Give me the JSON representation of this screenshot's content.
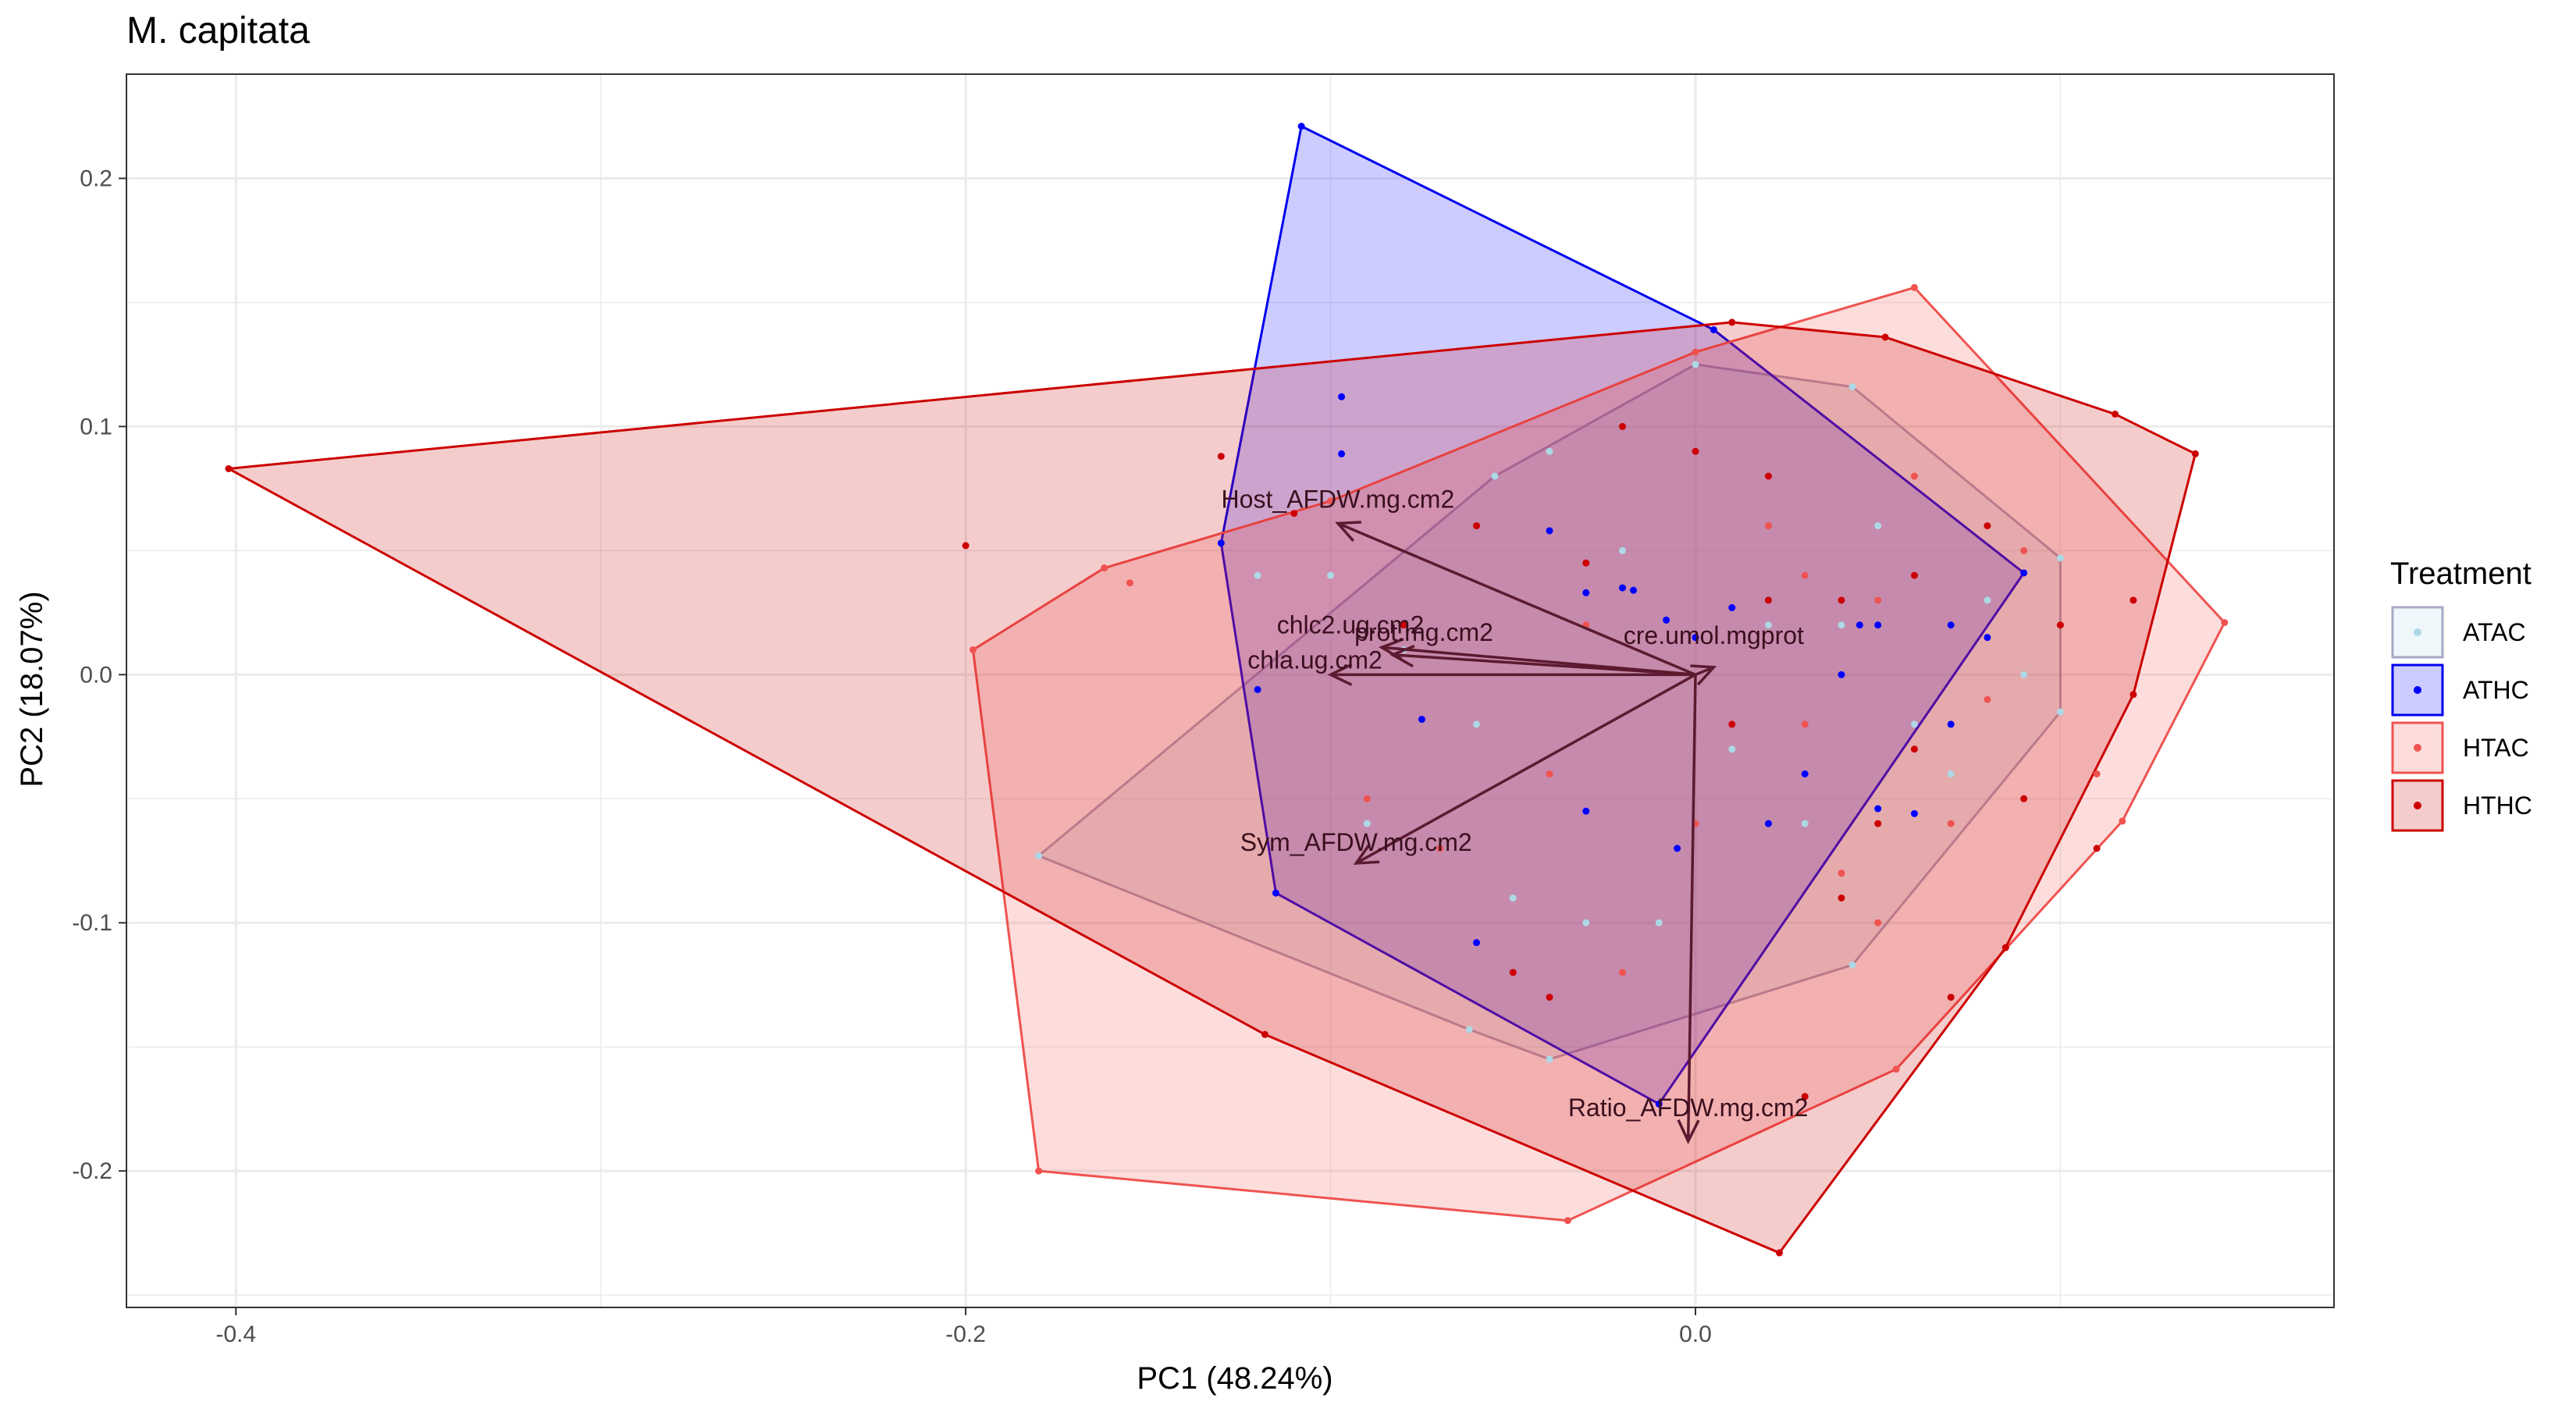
{
  "chart_data": {
    "type": "scatter",
    "title": "M. capitata",
    "xlabel": "PC1 (48.24%)",
    "ylabel": "PC2 (18.07%)",
    "xlim": [
      -0.43,
      0.175
    ],
    "ylim": [
      -0.255,
      0.242
    ],
    "x_ticks": [
      -0.4,
      -0.2,
      0.0
    ],
    "x_tick_labels": [
      "-0.4",
      "-0.2",
      "0.0"
    ],
    "y_ticks": [
      -0.2,
      -0.1,
      0.0,
      0.1,
      0.2
    ],
    "y_tick_labels": [
      "-0.2",
      "-0.1",
      "0.0",
      "0.1",
      "0.2"
    ],
    "grid": true,
    "legend": {
      "title": "Treatment",
      "position": "right",
      "entries": [
        "ATAC",
        "ATHC",
        "HTAC",
        "HTHC"
      ]
    },
    "series": [
      {
        "name": "ATAC",
        "color": "#add8e6",
        "hull_color": "#a9a9c6",
        "hull": [
          [
            -0.18,
            -0.073
          ],
          [
            -0.062,
            -0.143
          ],
          [
            -0.04,
            -0.155
          ],
          [
            0.043,
            -0.117
          ],
          [
            0.1,
            -0.015
          ],
          [
            0.1,
            0.047
          ],
          [
            0.043,
            0.116
          ],
          [
            0.0,
            0.125
          ],
          [
            -0.055,
            0.08
          ],
          [
            -0.18,
            -0.073
          ]
        ],
        "points": [
          [
            -0.18,
            -0.073
          ],
          [
            -0.062,
            -0.143
          ],
          [
            -0.04,
            -0.155
          ],
          [
            0.043,
            -0.117
          ],
          [
            0.1,
            -0.015
          ],
          [
            0.1,
            0.047
          ],
          [
            0.043,
            0.116
          ],
          [
            0.0,
            0.125
          ],
          [
            -0.055,
            0.08
          ],
          [
            -0.1,
            0.04
          ],
          [
            -0.08,
            0.01
          ],
          [
            -0.02,
            0.05
          ],
          [
            0.02,
            0.02
          ],
          [
            0.06,
            -0.02
          ],
          [
            0.03,
            -0.06
          ],
          [
            -0.03,
            -0.1
          ],
          [
            -0.06,
            -0.02
          ],
          [
            0.08,
            0.03
          ],
          [
            -0.01,
            -0.1
          ],
          [
            0.05,
            0.06
          ],
          [
            -0.09,
            -0.06
          ],
          [
            0.07,
            -0.04
          ],
          [
            -0.04,
            0.09
          ],
          [
            0.01,
            -0.03
          ],
          [
            0.09,
            0.0
          ],
          [
            -0.12,
            0.04
          ],
          [
            -0.05,
            -0.09
          ],
          [
            0.04,
            0.02
          ]
        ]
      },
      {
        "name": "ATHC",
        "color": "#0000ff",
        "hull_color": "#0000ee",
        "hull": [
          [
            -0.108,
            0.221
          ],
          [
            0.005,
            0.139
          ],
          [
            0.09,
            0.041
          ],
          [
            -0.01,
            -0.173
          ],
          [
            -0.115,
            -0.088
          ],
          [
            -0.13,
            0.053
          ],
          [
            -0.108,
            0.221
          ]
        ],
        "points": [
          [
            -0.108,
            0.221
          ],
          [
            0.005,
            0.139
          ],
          [
            0.09,
            0.041
          ],
          [
            -0.01,
            -0.173
          ],
          [
            -0.115,
            -0.088
          ],
          [
            -0.13,
            0.053
          ],
          [
            -0.097,
            0.112
          ],
          [
            -0.097,
            0.089
          ],
          [
            -0.12,
            -0.006
          ],
          [
            -0.06,
            -0.108
          ],
          [
            -0.03,
            0.033
          ],
          [
            -0.02,
            0.035
          ],
          [
            -0.017,
            0.034
          ],
          [
            0.01,
            0.027
          ],
          [
            -0.03,
            -0.055
          ],
          [
            0.05,
            0.02
          ],
          [
            0.07,
            0.02
          ],
          [
            0.08,
            0.015
          ],
          [
            0.06,
            -0.056
          ],
          [
            0.05,
            -0.054
          ],
          [
            -0.005,
            -0.07
          ],
          [
            0.02,
            -0.06
          ],
          [
            0.0,
            0.015
          ],
          [
            0.045,
            0.02
          ],
          [
            0.04,
            0.0
          ],
          [
            -0.04,
            0.058
          ],
          [
            0.03,
            -0.04
          ],
          [
            0.07,
            -0.02
          ],
          [
            -0.075,
            -0.018
          ],
          [
            -0.008,
            0.022
          ]
        ]
      },
      {
        "name": "HTAC",
        "color": "#ef5350",
        "hull_color": "#ef5350",
        "hull": [
          [
            -0.198,
            0.01
          ],
          [
            -0.162,
            0.043
          ],
          [
            -0.1,
            0.07
          ],
          [
            0.0,
            0.13
          ],
          [
            0.06,
            0.156
          ],
          [
            0.145,
            0.021
          ],
          [
            0.117,
            -0.059
          ],
          [
            0.055,
            -0.159
          ],
          [
            -0.035,
            -0.22
          ],
          [
            -0.18,
            -0.2
          ],
          [
            -0.198,
            0.01
          ]
        ],
        "points": [
          [
            -0.198,
            0.01
          ],
          [
            -0.162,
            0.043
          ],
          [
            -0.1,
            0.07
          ],
          [
            0.0,
            0.13
          ],
          [
            0.06,
            0.156
          ],
          [
            0.145,
            0.021
          ],
          [
            0.117,
            -0.059
          ],
          [
            0.055,
            -0.159
          ],
          [
            -0.035,
            -0.22
          ],
          [
            -0.18,
            -0.2
          ],
          [
            -0.155,
            0.037
          ],
          [
            -0.09,
            -0.05
          ],
          [
            -0.06,
            0.06
          ],
          [
            -0.04,
            -0.04
          ],
          [
            0.02,
            0.06
          ],
          [
            0.03,
            -0.02
          ],
          [
            0.05,
            0.03
          ],
          [
            0.08,
            -0.01
          ],
          [
            0.1,
            0.02
          ],
          [
            0.11,
            -0.04
          ],
          [
            -0.02,
            -0.12
          ],
          [
            0.04,
            -0.08
          ],
          [
            0.06,
            0.08
          ],
          [
            -0.07,
            -0.07
          ],
          [
            0.09,
            0.05
          ],
          [
            0.03,
            0.04
          ],
          [
            0.07,
            -0.06
          ],
          [
            -0.03,
            0.02
          ],
          [
            0.0,
            -0.06
          ],
          [
            0.05,
            -0.1
          ]
        ]
      },
      {
        "name": "HTHC",
        "color": "#cc0000",
        "hull_color": "#cc0000",
        "hull": [
          [
            -0.402,
            0.083
          ],
          [
            0.01,
            0.142
          ],
          [
            0.052,
            0.136
          ],
          [
            0.115,
            0.105
          ],
          [
            0.137,
            0.089
          ],
          [
            0.12,
            -0.008
          ],
          [
            0.085,
            -0.11
          ],
          [
            0.023,
            -0.233
          ],
          [
            -0.118,
            -0.145
          ],
          [
            -0.402,
            0.083
          ]
        ],
        "points": [
          [
            -0.402,
            0.083
          ],
          [
            0.01,
            0.142
          ],
          [
            0.052,
            0.136
          ],
          [
            0.115,
            0.105
          ],
          [
            0.137,
            0.089
          ],
          [
            0.12,
            -0.008
          ],
          [
            0.085,
            -0.11
          ],
          [
            0.023,
            -0.233
          ],
          [
            -0.118,
            -0.145
          ],
          [
            -0.2,
            0.052
          ],
          [
            -0.13,
            0.088
          ],
          [
            -0.11,
            0.065
          ],
          [
            -0.06,
            0.06
          ],
          [
            -0.03,
            0.045
          ],
          [
            0.0,
            0.09
          ],
          [
            0.02,
            0.08
          ],
          [
            0.04,
            0.03
          ],
          [
            0.06,
            0.04
          ],
          [
            0.09,
            -0.05
          ],
          [
            0.1,
            0.02
          ],
          [
            0.12,
            0.03
          ],
          [
            0.05,
            -0.06
          ],
          [
            -0.05,
            -0.12
          ],
          [
            -0.08,
            0.02
          ],
          [
            0.03,
            -0.17
          ],
          [
            0.07,
            -0.13
          ],
          [
            0.04,
            -0.09
          ],
          [
            0.02,
            0.03
          ],
          [
            0.01,
            -0.02
          ],
          [
            -0.02,
            0.1
          ],
          [
            0.06,
            -0.03
          ],
          [
            0.08,
            0.06
          ],
          [
            -0.04,
            -0.13
          ],
          [
            0.11,
            -0.07
          ]
        ]
      }
    ],
    "loadings": {
      "origin": [
        0.0,
        0.0
      ],
      "color": "#5b1a2f",
      "vectors": [
        {
          "label": "Host_AFDW.mg.cm2",
          "x": -0.098,
          "y": 0.061
        },
        {
          "label": "chlc2.ug.cm2",
          "x": -0.086,
          "y": 0.011
        },
        {
          "label": "prot.mg.cm2",
          "x": -0.083,
          "y": 0.008
        },
        {
          "label": "chla.ug.cm2",
          "x": -0.1,
          "y": 0.0
        },
        {
          "label": "cre.umol.mgprot",
          "x": 0.005,
          "y": 0.003
        },
        {
          "label": "Sym_AFDW.mg.cm2",
          "x": -0.093,
          "y": -0.076
        },
        {
          "label": "Ratio_AFDW.mg.cm2",
          "x": -0.002,
          "y": -0.188
        }
      ]
    }
  }
}
